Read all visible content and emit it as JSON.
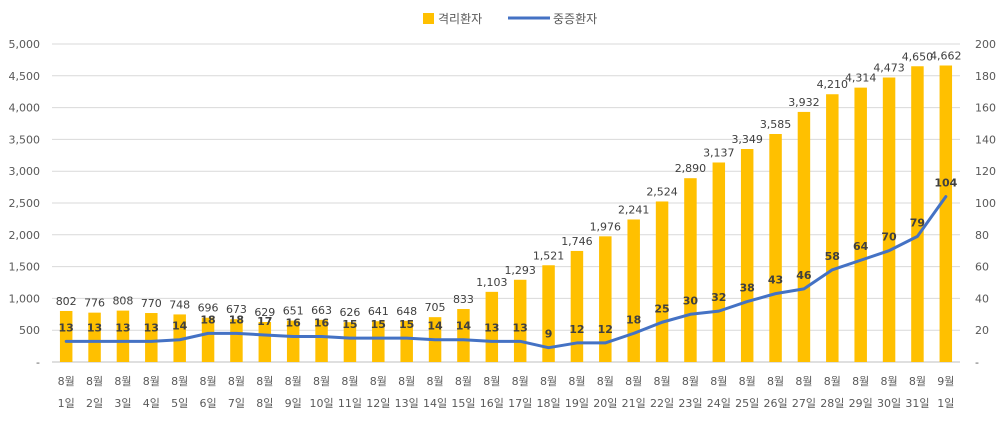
{
  "chart_data": {
    "type": "bar+line",
    "categories": [
      {
        "month": "8월",
        "day": "1일"
      },
      {
        "month": "8월",
        "day": "2일"
      },
      {
        "month": "8월",
        "day": "3일"
      },
      {
        "month": "8월",
        "day": "4일"
      },
      {
        "month": "8월",
        "day": "5일"
      },
      {
        "month": "8월",
        "day": "6일"
      },
      {
        "month": "8월",
        "day": "7일"
      },
      {
        "month": "8월",
        "day": "8일"
      },
      {
        "month": "8월",
        "day": "9일"
      },
      {
        "month": "8월",
        "day": "10일"
      },
      {
        "month": "8월",
        "day": "11일"
      },
      {
        "month": "8월",
        "day": "12일"
      },
      {
        "month": "8월",
        "day": "13일"
      },
      {
        "month": "8월",
        "day": "14일"
      },
      {
        "month": "8월",
        "day": "15일"
      },
      {
        "month": "8월",
        "day": "16일"
      },
      {
        "month": "8월",
        "day": "17일"
      },
      {
        "month": "8월",
        "day": "18일"
      },
      {
        "month": "8월",
        "day": "19일"
      },
      {
        "month": "8월",
        "day": "20일"
      },
      {
        "month": "8월",
        "day": "21일"
      },
      {
        "month": "8월",
        "day": "22일"
      },
      {
        "month": "8월",
        "day": "23일"
      },
      {
        "month": "8월",
        "day": "24일"
      },
      {
        "month": "8월",
        "day": "25일"
      },
      {
        "month": "8월",
        "day": "26일"
      },
      {
        "month": "8월",
        "day": "27일"
      },
      {
        "month": "8월",
        "day": "28일"
      },
      {
        "month": "8월",
        "day": "29일"
      },
      {
        "month": "8월",
        "day": "30일"
      },
      {
        "month": "8월",
        "day": "31일"
      },
      {
        "month": "9월",
        "day": "1일"
      }
    ],
    "series": [
      {
        "name": "격리환자",
        "kind": "bar",
        "axis": "left",
        "color": "#FFC000",
        "values": [
          802,
          776,
          808,
          770,
          748,
          696,
          673,
          629,
          651,
          663,
          626,
          641,
          648,
          705,
          833,
          1103,
          1293,
          1521,
          1746,
          1976,
          2241,
          2524,
          2890,
          3137,
          3349,
          3585,
          3932,
          4210,
          4314,
          4473,
          4650,
          4662
        ]
      },
      {
        "name": "중증환자",
        "kind": "line",
        "axis": "right",
        "color": "#4472C4",
        "values": [
          13,
          13,
          13,
          13,
          14,
          18,
          18,
          17,
          16,
          16,
          15,
          15,
          15,
          14,
          14,
          13,
          13,
          9,
          12,
          12,
          18,
          25,
          30,
          32,
          38,
          43,
          46,
          58,
          64,
          70,
          79,
          104
        ]
      }
    ],
    "y_left": {
      "range": [
        0,
        5000
      ],
      "ticks": [
        0,
        500,
        1000,
        1500,
        2000,
        2500,
        3000,
        3500,
        4000,
        4500,
        5000
      ],
      "tick_labels": [
        "-",
        "500",
        "1,000",
        "1,500",
        "2,000",
        "2,500",
        "3,000",
        "3,500",
        "4,000",
        "4,500",
        "5,000"
      ]
    },
    "y_right": {
      "range": [
        0,
        200
      ],
      "ticks": [
        0,
        20,
        40,
        60,
        80,
        100,
        120,
        140,
        160,
        180,
        200
      ],
      "tick_labels": [
        "-",
        "20",
        "40",
        "60",
        "80",
        "100",
        "120",
        "140",
        "160",
        "180",
        "200"
      ]
    },
    "legend": {
      "position": "top-center",
      "items": [
        "격리환자",
        "중증환자"
      ]
    },
    "grid": true,
    "title": ""
  }
}
